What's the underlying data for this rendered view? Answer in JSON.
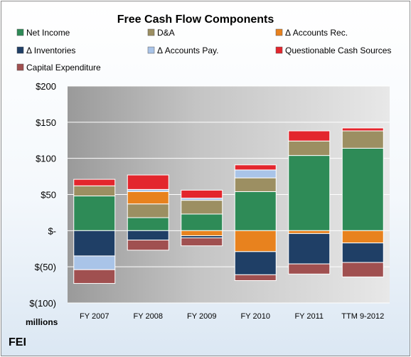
{
  "chart_data": {
    "type": "bar",
    "stacked": true,
    "title": "Free Cash Flow Components",
    "unit_label": "millions",
    "footer": "FEI",
    "categories": [
      "FY 2007",
      "FY 2008",
      "FY 2009",
      "FY 2010",
      "FY 2011",
      "TTM 9-2012"
    ],
    "ylim": [
      -100,
      200
    ],
    "yticks": [
      200,
      150,
      100,
      50,
      0,
      -50,
      -100
    ],
    "ytick_labels": [
      "$200",
      "$150",
      "$100",
      "$50",
      "$-",
      "$(50)",
      "$(100)"
    ],
    "grid": true,
    "legend_position": "top",
    "series": [
      {
        "name": "Net Income",
        "color": "#2e8b57",
        "values": [
          48,
          18,
          23,
          54,
          104,
          114
        ]
      },
      {
        "name": "D&A",
        "color": "#9c8f62",
        "values": [
          14,
          19,
          19,
          19,
          20,
          24
        ]
      },
      {
        "name": "Δ Accounts Rec.",
        "color": "#e8821e",
        "values": [
          0,
          17,
          -7,
          -29,
          -4,
          -17
        ]
      },
      {
        "name": "Δ Inventories",
        "color": "#1f3f66",
        "values": [
          -35,
          -13,
          -3,
          -32,
          -42,
          -27
        ]
      },
      {
        "name": "Δ Accounts Pay.",
        "color": "#a9c4e8",
        "values": [
          -19,
          3,
          3,
          11,
          0,
          0
        ]
      },
      {
        "name": "Questionable Cash Sources",
        "color": "#e3262d",
        "values": [
          9,
          20,
          11,
          7,
          14,
          4
        ]
      },
      {
        "name": "Capital Expenditure",
        "color": "#a05050",
        "values": [
          -19,
          -14,
          -11,
          -8,
          -14,
          -20
        ]
      }
    ]
  }
}
